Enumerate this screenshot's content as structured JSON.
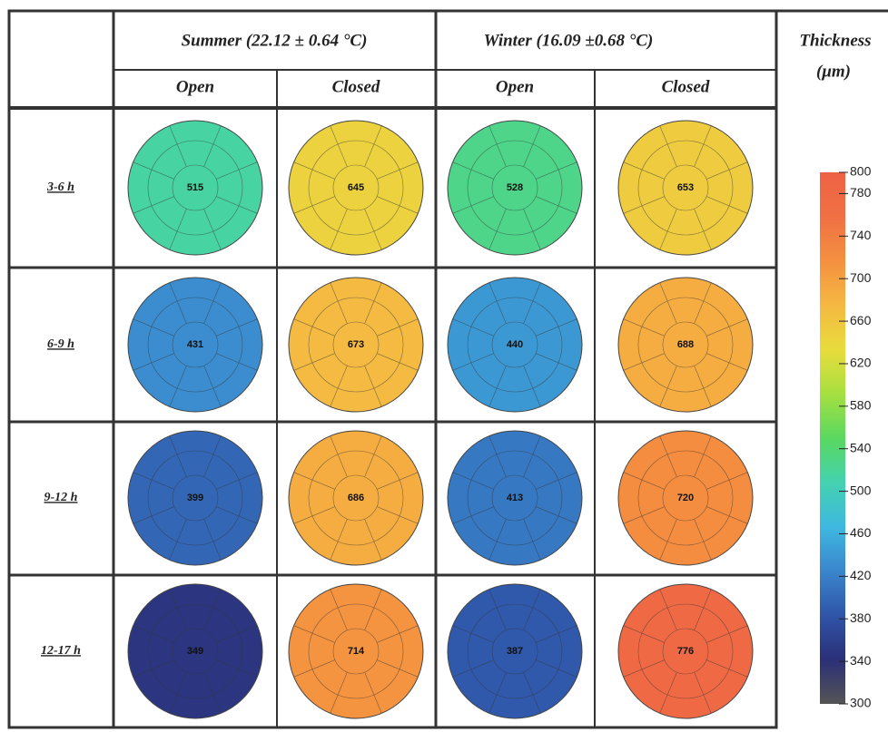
{
  "header": {
    "summer": "Summer (22.12 ± 0.64 °C)",
    "winter": "Winter (16.09 ±0.68 °C)",
    "thickness": [
      "Thickness",
      "(μm)"
    ],
    "conditions": [
      "Open",
      "Closed",
      "Open",
      "Closed"
    ]
  },
  "rows": [
    {
      "label": "3-6 h",
      "centers": [
        515,
        645,
        528,
        653
      ]
    },
    {
      "label": "6-9 h",
      "centers": [
        431,
        673,
        440,
        688
      ]
    },
    {
      "label": "9-12 h",
      "centers": [
        399,
        686,
        413,
        720
      ]
    },
    {
      "label": "12-17 h",
      "centers": [
        349,
        714,
        387,
        776
      ]
    }
  ],
  "colorbar": {
    "min": 300,
    "max": 800,
    "ticks": [
      300,
      340,
      380,
      420,
      460,
      500,
      540,
      580,
      620,
      660,
      700,
      740,
      780,
      800
    ],
    "colors": [
      "#555555",
      "#2b2f78",
      "#2f55a8",
      "#3a86cc",
      "#3fb8e0",
      "#44d2b0",
      "#5ad860",
      "#a6e040",
      "#e8dc3c",
      "#f5b842",
      "#f49040",
      "#f07044",
      "#ee6244"
    ]
  }
}
